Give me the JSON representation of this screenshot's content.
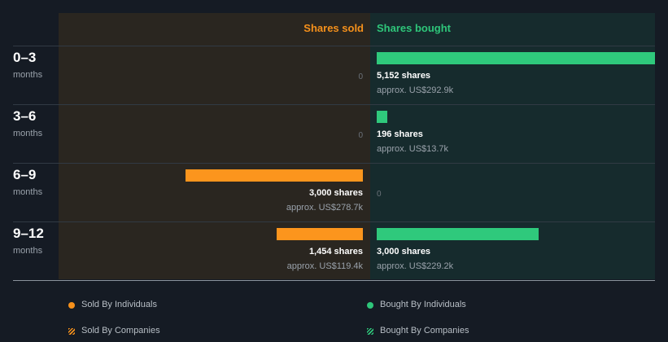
{
  "chart_data": {
    "type": "bar",
    "headers": {
      "sold": "Shares sold",
      "bought": "Shares bought"
    },
    "periods": [
      {
        "main": "0–3",
        "sub": "months"
      },
      {
        "main": "3–6",
        "sub": "months"
      },
      {
        "main": "6–9",
        "sub": "months"
      },
      {
        "main": "9–12",
        "sub": "months"
      }
    ],
    "series": [
      {
        "name": "Shares sold",
        "values": [
          0,
          0,
          3000,
          1454
        ],
        "labels": [
          "0",
          "0",
          "3,000 shares",
          "1,454 shares"
        ],
        "approx": [
          "",
          "",
          "approx. US$278.7k",
          "approx. US$119.4k"
        ]
      },
      {
        "name": "Shares bought",
        "values": [
          5152,
          196,
          0,
          3000
        ],
        "labels": [
          "5,152 shares",
          "196 shares",
          "0",
          "3,000 shares"
        ],
        "approx": [
          "approx. US$292.9k",
          "approx. US$13.7k",
          "",
          "approx. US$229.2k"
        ]
      }
    ],
    "max_value": 5152,
    "legend": [
      {
        "label": "Sold By Individuals",
        "color": "#f5901b",
        "style": "dot"
      },
      {
        "label": "Bought By Individuals",
        "color": "#2ec67a",
        "style": "dot"
      },
      {
        "label": "Sold By Companies",
        "color": "#f5901b",
        "style": "hatch"
      },
      {
        "label": "Bought By Companies",
        "color": "#2ec67a",
        "style": "hatch"
      }
    ]
  },
  "colors": {
    "sold": "#fc951d",
    "bought": "#2fc97c"
  }
}
